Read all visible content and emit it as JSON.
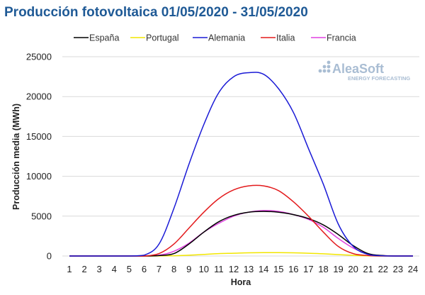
{
  "chart_data": {
    "type": "line",
    "title": "Producción fotovoltaica 01/05/2020 - 31/05/2020",
    "xlabel": "Hora",
    "ylabel": "Producción media (MWh)",
    "x": [
      1,
      2,
      3,
      4,
      5,
      6,
      7,
      8,
      9,
      10,
      11,
      12,
      13,
      14,
      15,
      16,
      17,
      18,
      19,
      20,
      21,
      22,
      23,
      24
    ],
    "ylim": [
      0,
      25000
    ],
    "yticks": [
      0,
      5000,
      10000,
      15000,
      20000,
      25000
    ],
    "xticks": [
      "1",
      "2",
      "3",
      "4",
      "5",
      "6",
      "7",
      "8",
      "9",
      "10",
      "11",
      "12",
      "13",
      "14",
      "15",
      "16",
      "17",
      "18",
      "19",
      "20",
      "21",
      "22",
      "23",
      "24"
    ],
    "grid": "horizontal",
    "legend_position": "top",
    "series": [
      {
        "name": "España",
        "color": "#000000",
        "values": [
          0,
          0,
          0,
          0,
          0,
          0,
          50,
          300,
          1500,
          3000,
          4300,
          5100,
          5500,
          5600,
          5500,
          5200,
          4700,
          3900,
          2700,
          1300,
          300,
          50,
          0,
          0
        ]
      },
      {
        "name": "Portugal",
        "color": "#f2e600",
        "values": [
          0,
          0,
          0,
          0,
          0,
          0,
          10,
          40,
          100,
          200,
          300,
          350,
          400,
          420,
          420,
          400,
          350,
          280,
          180,
          80,
          20,
          0,
          0,
          0
        ]
      },
      {
        "name": "Alemania",
        "color": "#1a1ad6",
        "values": [
          0,
          0,
          0,
          0,
          0,
          100,
          1500,
          6000,
          11500,
          16500,
          20500,
          22500,
          23000,
          22800,
          21000,
          18000,
          13500,
          9000,
          4000,
          1200,
          200,
          30,
          0,
          0
        ]
      },
      {
        "name": "Italia",
        "color": "#e31a1c",
        "values": [
          0,
          0,
          0,
          0,
          0,
          0,
          300,
          1500,
          3500,
          5500,
          7200,
          8300,
          8800,
          8800,
          8200,
          6800,
          5000,
          3000,
          1200,
          300,
          50,
          0,
          0,
          0
        ]
      },
      {
        "name": "Francia",
        "color": "#e040e0",
        "values": [
          0,
          0,
          0,
          0,
          0,
          0,
          100,
          600,
          1600,
          3000,
          4100,
          5000,
          5500,
          5700,
          5600,
          5200,
          4600,
          3600,
          2200,
          1000,
          250,
          50,
          0,
          0
        ]
      }
    ]
  },
  "watermark": {
    "brand": "AleaSoft",
    "tagline": "ENERGY FORECASTING"
  }
}
